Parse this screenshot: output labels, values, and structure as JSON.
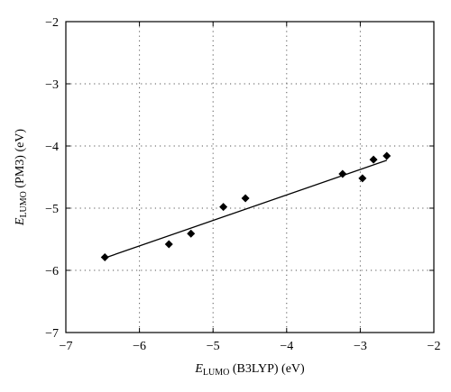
{
  "chart_data": {
    "type": "scatter",
    "title": "",
    "xlabel": {
      "symbol": "E",
      "subscript": "LUMO",
      "rest": " (B3LYP) (eV)"
    },
    "ylabel": {
      "symbol": "E",
      "subscript": "LUMO",
      "rest": " (PM3) (eV)"
    },
    "xlim": [
      -7,
      -2
    ],
    "ylim": [
      -7,
      -2
    ],
    "xticks": [
      -7,
      -6,
      -5,
      -4,
      -3,
      -2
    ],
    "yticks": [
      -7,
      -6,
      -5,
      -4,
      -3,
      -2
    ],
    "xtick_labels": [
      "−7",
      "−6",
      "−5",
      "−4",
      "−3",
      "−2"
    ],
    "ytick_labels": [
      "−7",
      "−6",
      "−5",
      "−4",
      "−3",
      "−2"
    ],
    "grid": true,
    "grid_style": "dotted",
    "marker": "diamond",
    "colors": {
      "marker": "#000000",
      "line": "#000000",
      "grid": "#555555"
    },
    "points": [
      {
        "x": -6.47,
        "y": -5.79
      },
      {
        "x": -5.6,
        "y": -5.58
      },
      {
        "x": -5.3,
        "y": -5.41
      },
      {
        "x": -4.86,
        "y": -4.98
      },
      {
        "x": -4.56,
        "y": -4.84
      },
      {
        "x": -3.24,
        "y": -4.45
      },
      {
        "x": -2.97,
        "y": -4.52
      },
      {
        "x": -2.82,
        "y": -4.22
      },
      {
        "x": -2.64,
        "y": -4.16
      }
    ],
    "fit_line": {
      "x": [
        -6.47,
        -2.64
      ],
      "y": [
        -5.8,
        -4.23
      ]
    }
  }
}
